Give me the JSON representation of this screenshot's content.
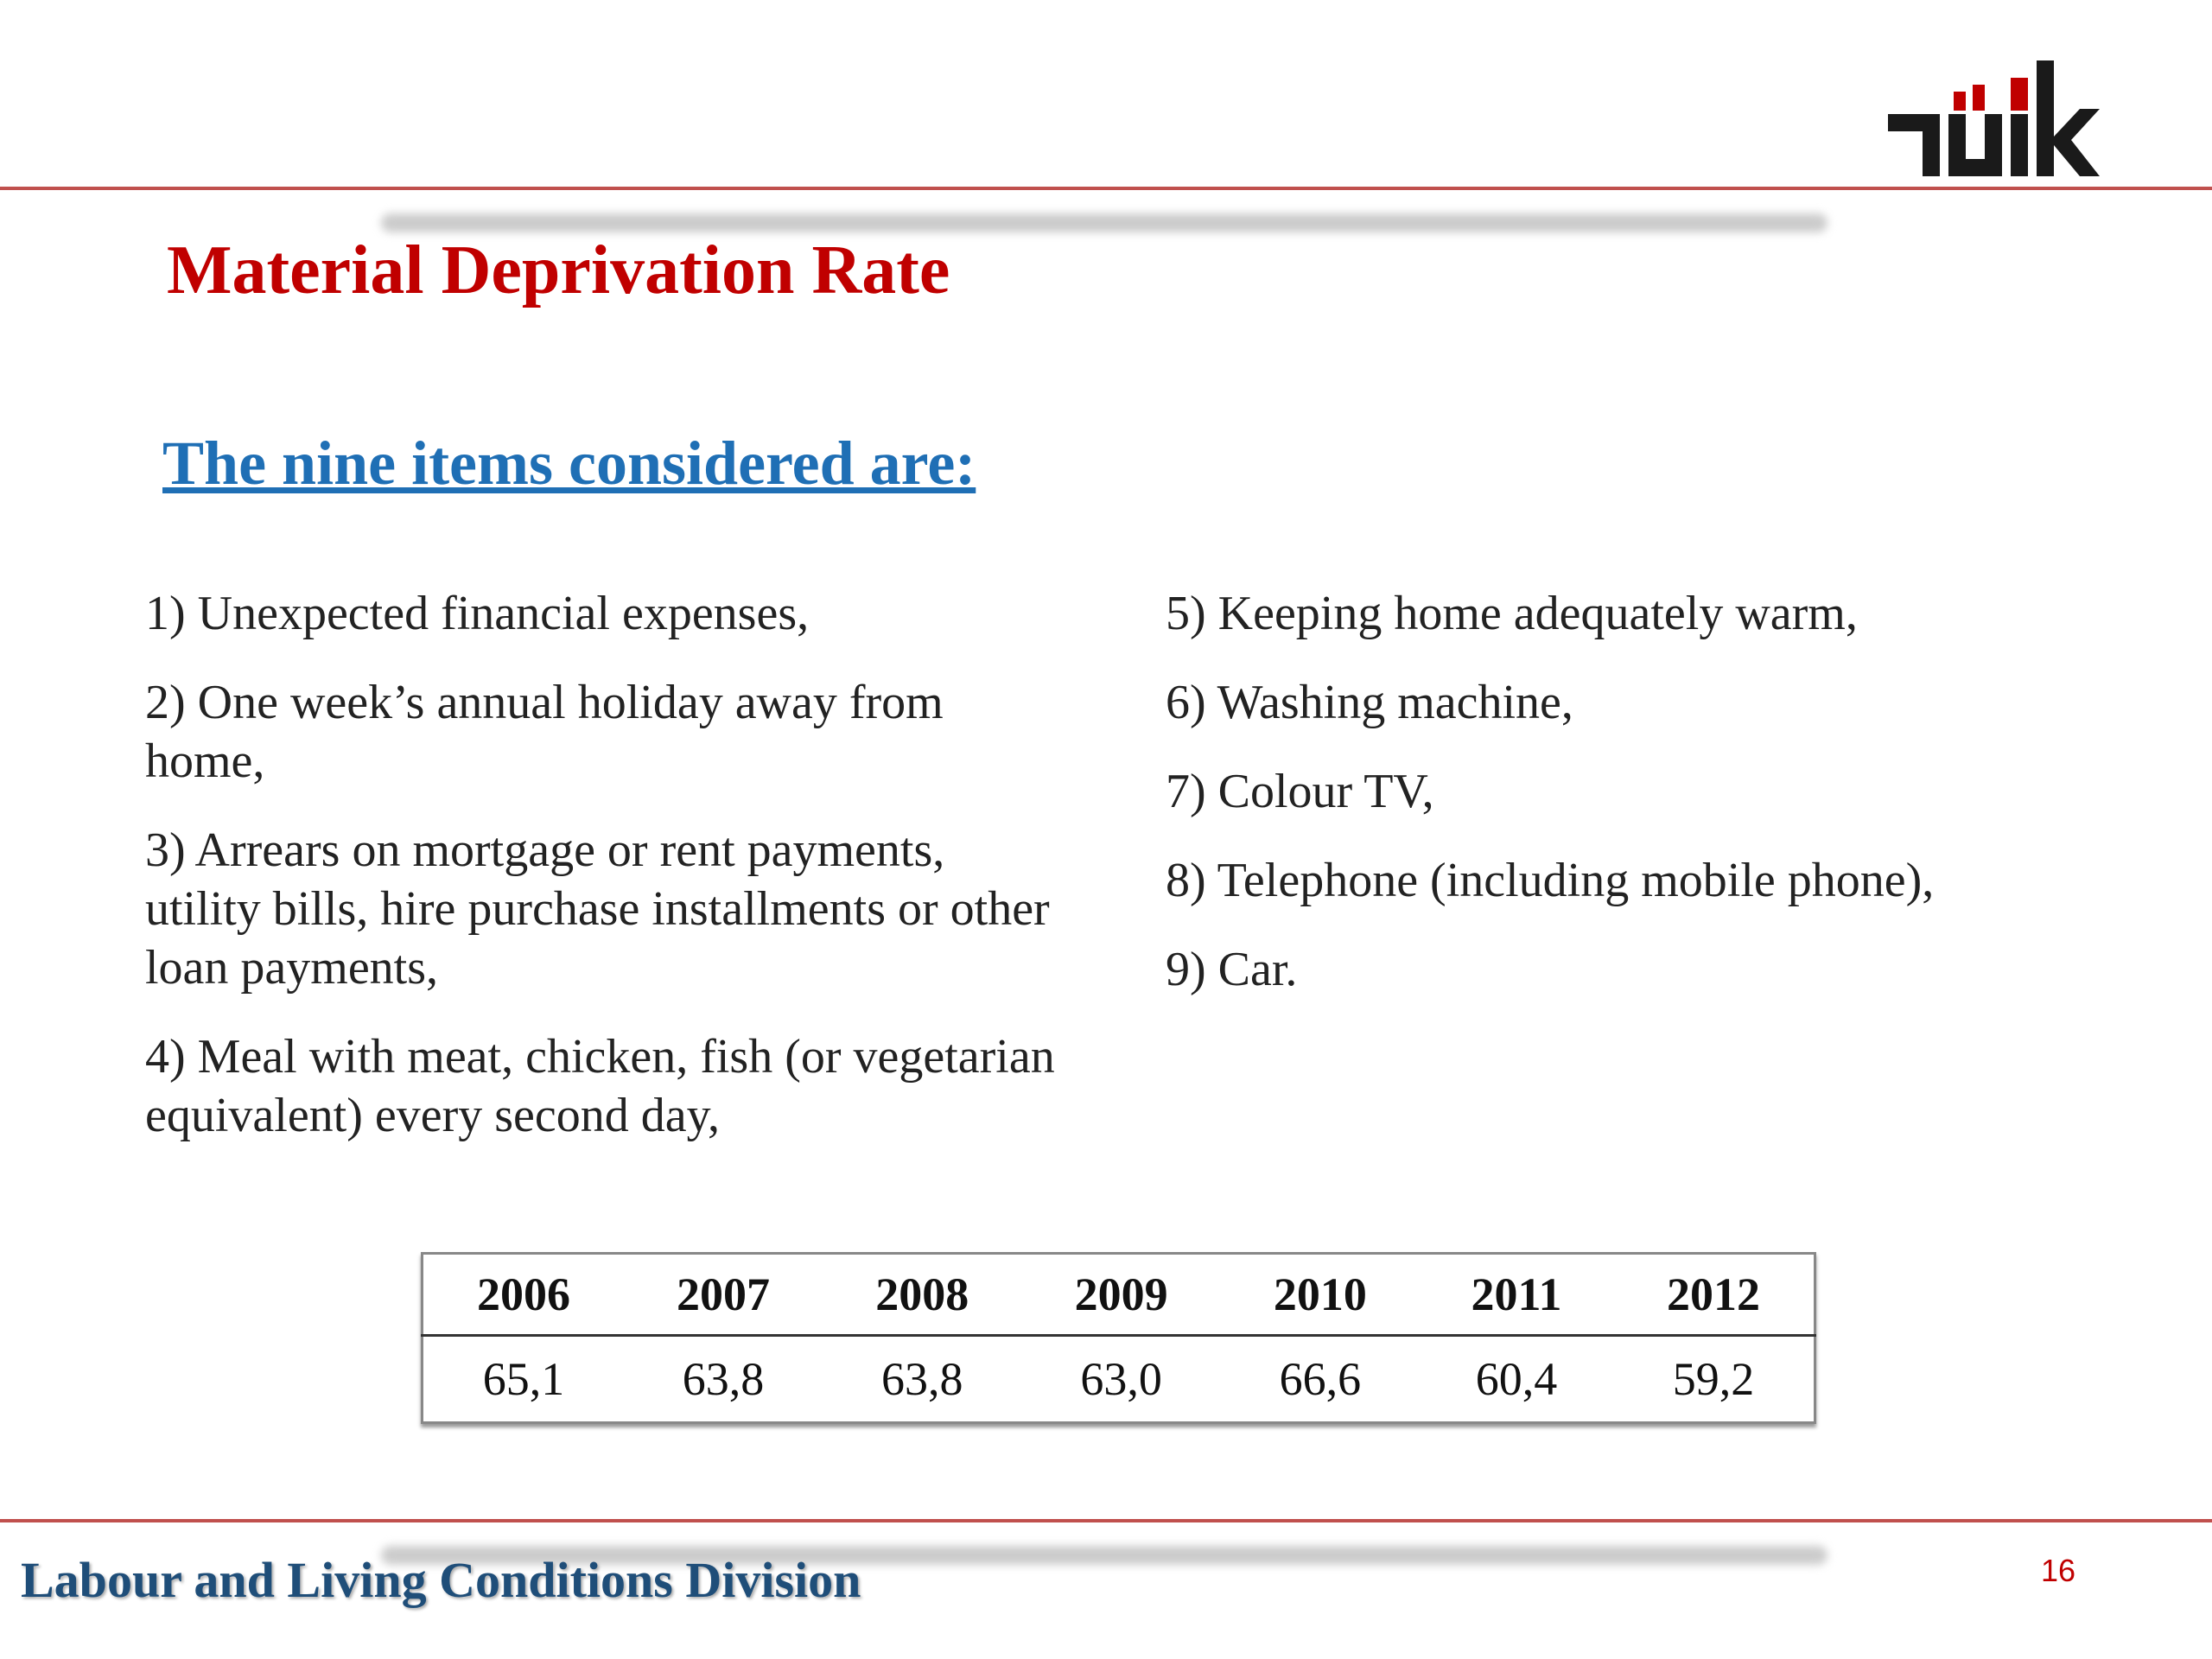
{
  "header": {
    "title": "Material Deprivation Rate",
    "subtitle": "The nine items considered are:"
  },
  "items_left": [
    "1) Unexpected financial expenses,",
    "2) One week’s annual holiday away from home,",
    "3) Arrears on mortgage or rent payments, utility bills, hire purchase installments or other loan payments,",
    "4) Meal with meat, chicken, fish (or vegetarian equivalent) every second day,"
  ],
  "items_right": [
    "5) Keeping home adequately warm,",
    "6) Washing machine,",
    "7) Colour TV,",
    "8) Telephone (including mobile phone),",
    "9) Car."
  ],
  "table": {
    "header": [
      "2006",
      "2007",
      "2008",
      "2009",
      "2010",
      "2011",
      "2012"
    ],
    "rows": [
      [
        "65,1",
        "63,8",
        "63,8",
        "63,0",
        "66,6",
        "60,4",
        "59,2"
      ]
    ]
  },
  "footer": {
    "division": "Labour and Living Conditions Division",
    "page": "16"
  }
}
